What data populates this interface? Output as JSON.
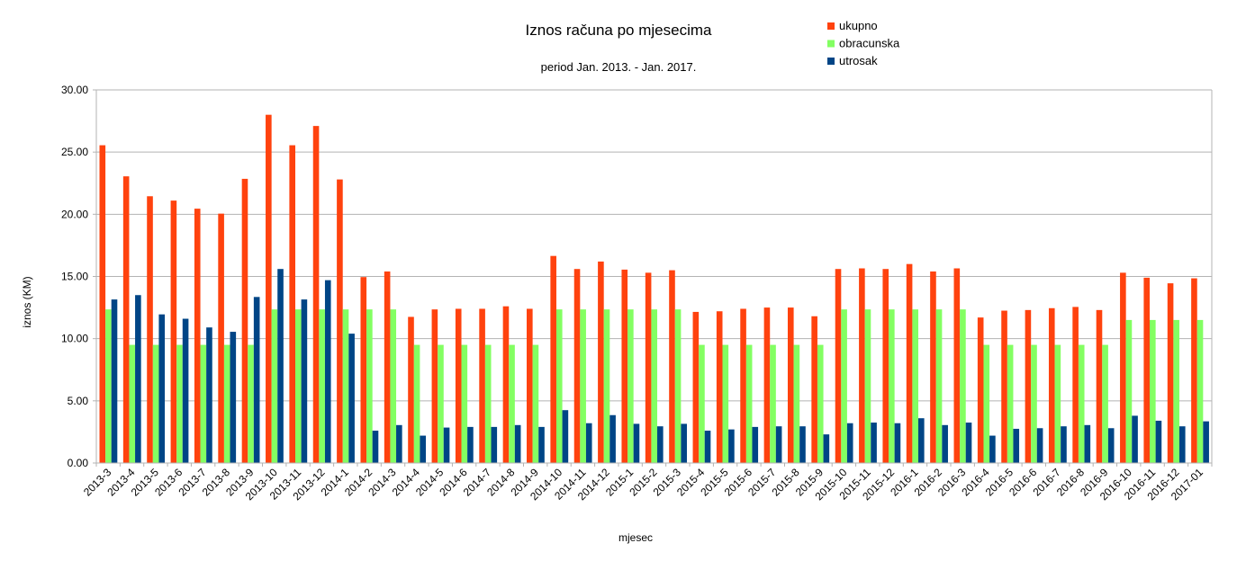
{
  "chart_data": {
    "type": "bar",
    "title": "Iznos računa po mjesecima",
    "subtitle": "period Jan. 2013. - Jan. 2017.",
    "xlabel": "mjesec",
    "ylabel": "iznos (KM)",
    "ylim": [
      0,
      30
    ],
    "yticks": [
      "0.00",
      "5.00",
      "10.00",
      "15.00",
      "20.00",
      "25.00",
      "30.00"
    ],
    "grid": true,
    "legend_position": "top-right",
    "categories": [
      "2013-3",
      "2013-4",
      "2013-5",
      "2013-6",
      "2013-7",
      "2013-8",
      "2013-9",
      "2013-10",
      "2013-11",
      "2013-12",
      "2014-1",
      "2014-2",
      "2014-3",
      "2014-4",
      "2014-5",
      "2014-6",
      "2014-7",
      "2014-8",
      "2014-9",
      "2014-10",
      "2014-11",
      "2014-12",
      "2015-1",
      "2015-2",
      "2015-3",
      "2015-4",
      "2015-5",
      "2015-6",
      "2015-7",
      "2015-8",
      "2015-9",
      "2015-10",
      "2015-11",
      "2015-12",
      "2016-1",
      "2016-2",
      "2016-3",
      "2016-4",
      "2016-5",
      "2016-6",
      "2016-7",
      "2016-8",
      "2016-9",
      "2016-10",
      "2016-11",
      "2016-12",
      "2017-01"
    ],
    "series": [
      {
        "name": "ukupno",
        "color": "#ff420e",
        "values": [
          25.55,
          23.05,
          21.45,
          21.1,
          20.45,
          20.05,
          22.85,
          28.0,
          25.55,
          27.1,
          22.8,
          14.95,
          15.4,
          11.75,
          12.35,
          12.4,
          12.4,
          12.6,
          12.4,
          16.65,
          15.6,
          16.2,
          15.55,
          15.3,
          15.5,
          12.15,
          12.2,
          12.4,
          12.5,
          12.5,
          11.8,
          15.6,
          15.65,
          15.6,
          16.0,
          15.4,
          15.65,
          11.7,
          12.25,
          12.3,
          12.45,
          12.55,
          12.3,
          15.3,
          14.9,
          14.45,
          14.85
        ]
      },
      {
        "name": "obracunska",
        "color": "#83ff62",
        "values": [
          12.35,
          9.5,
          9.5,
          9.5,
          9.5,
          9.5,
          9.5,
          12.35,
          12.35,
          12.35,
          12.35,
          12.35,
          12.35,
          9.5,
          9.5,
          9.5,
          9.5,
          9.5,
          9.5,
          12.35,
          12.35,
          12.35,
          12.35,
          12.35,
          12.35,
          9.5,
          9.5,
          9.5,
          9.5,
          9.5,
          9.5,
          12.35,
          12.35,
          12.35,
          12.35,
          12.35,
          12.35,
          9.5,
          9.5,
          9.5,
          9.5,
          9.5,
          9.5,
          11.5,
          11.5,
          11.5,
          11.5
        ]
      },
      {
        "name": "utrosak",
        "color": "#004586",
        "values": [
          13.15,
          13.5,
          11.95,
          11.6,
          10.9,
          10.55,
          13.35,
          15.6,
          13.15,
          14.7,
          10.4,
          2.6,
          3.05,
          2.2,
          2.85,
          2.9,
          2.9,
          3.05,
          2.9,
          4.25,
          3.2,
          3.85,
          3.15,
          2.95,
          3.15,
          2.6,
          2.7,
          2.9,
          2.95,
          2.95,
          2.3,
          3.2,
          3.25,
          3.2,
          3.6,
          3.05,
          3.25,
          2.2,
          2.75,
          2.8,
          2.95,
          3.05,
          2.8,
          3.8,
          3.4,
          2.95,
          3.35
        ]
      }
    ]
  }
}
